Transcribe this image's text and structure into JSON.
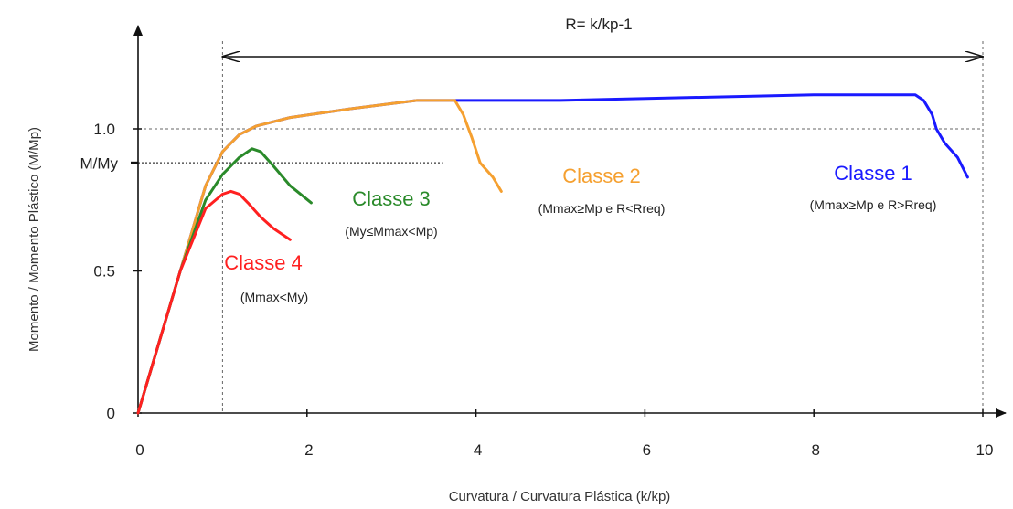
{
  "chart_data": {
    "type": "line",
    "xlabel": "Curvatura / Curvatura Plástica (k/kp)",
    "ylabel": "Momento / Momento Plástico (M/Mp)",
    "xlim": [
      0,
      10
    ],
    "ylim": [
      0,
      1.25
    ],
    "x_ticks": [
      0,
      2,
      4,
      6,
      8,
      10
    ],
    "x_tick_labels": [
      "0",
      "2",
      "4",
      "6",
      "8",
      "10"
    ],
    "y_ticks": [
      0,
      0.5,
      1.0
    ],
    "y_tick_labels": [
      "0",
      "0.5",
      "1.0"
    ],
    "My_level": 0.88,
    "My_label": "M/My",
    "reference_lines": {
      "Mp_level": 1.0,
      "kp_x": 1.0,
      "right_x": 10.0
    },
    "R_annotation": {
      "text": "R= k/kp-1",
      "x_from": 1.0,
      "x_to": 10.0,
      "y": 1.26
    },
    "series": [
      {
        "color": "#1a1aff",
        "title": "Classe 1",
        "subtitle": "(Mmax≥Mp e R>Rreq)",
        "x": [
          0,
          0.5,
          0.8,
          1.0,
          1.2,
          1.4,
          1.8,
          2.5,
          3.3,
          3.8,
          5.0,
          6.5,
          8.0,
          9.2,
          9.3,
          9.4,
          9.45,
          9.55,
          9.7,
          9.82
        ],
        "y": [
          0,
          0.5,
          0.8,
          0.92,
          0.98,
          1.01,
          1.04,
          1.07,
          1.1,
          1.1,
          1.1,
          1.11,
          1.12,
          1.12,
          1.1,
          1.05,
          1.0,
          0.95,
          0.9,
          0.83
        ]
      },
      {
        "color": "#f5a030",
        "title": "Classe 2",
        "subtitle": "(Mmax≥Mp e R<Rreq)",
        "x": [
          0,
          0.5,
          0.8,
          1.0,
          1.2,
          1.4,
          1.8,
          2.5,
          3.3,
          3.75,
          3.85,
          3.95,
          4.05,
          4.2,
          4.3
        ],
        "y": [
          0,
          0.5,
          0.8,
          0.92,
          0.98,
          1.01,
          1.04,
          1.07,
          1.1,
          1.1,
          1.05,
          0.97,
          0.88,
          0.83,
          0.78
        ]
      },
      {
        "color": "#2a8a2a",
        "title": "Classe 3",
        "subtitle": "(My≤Mmax<Mp)",
        "x": [
          0,
          0.5,
          0.8,
          1.0,
          1.2,
          1.35,
          1.45,
          1.6,
          1.8,
          2.05
        ],
        "y": [
          0,
          0.5,
          0.75,
          0.84,
          0.9,
          0.93,
          0.92,
          0.87,
          0.8,
          0.74
        ]
      },
      {
        "color": "#ff2020",
        "title": "Classe 4",
        "subtitle": "(Mmax<My)",
        "x": [
          0,
          0.5,
          0.8,
          1.0,
          1.1,
          1.2,
          1.3,
          1.45,
          1.6,
          1.8
        ],
        "y": [
          0,
          0.5,
          0.72,
          0.77,
          0.78,
          0.77,
          0.74,
          0.69,
          0.65,
          0.61
        ]
      }
    ]
  }
}
